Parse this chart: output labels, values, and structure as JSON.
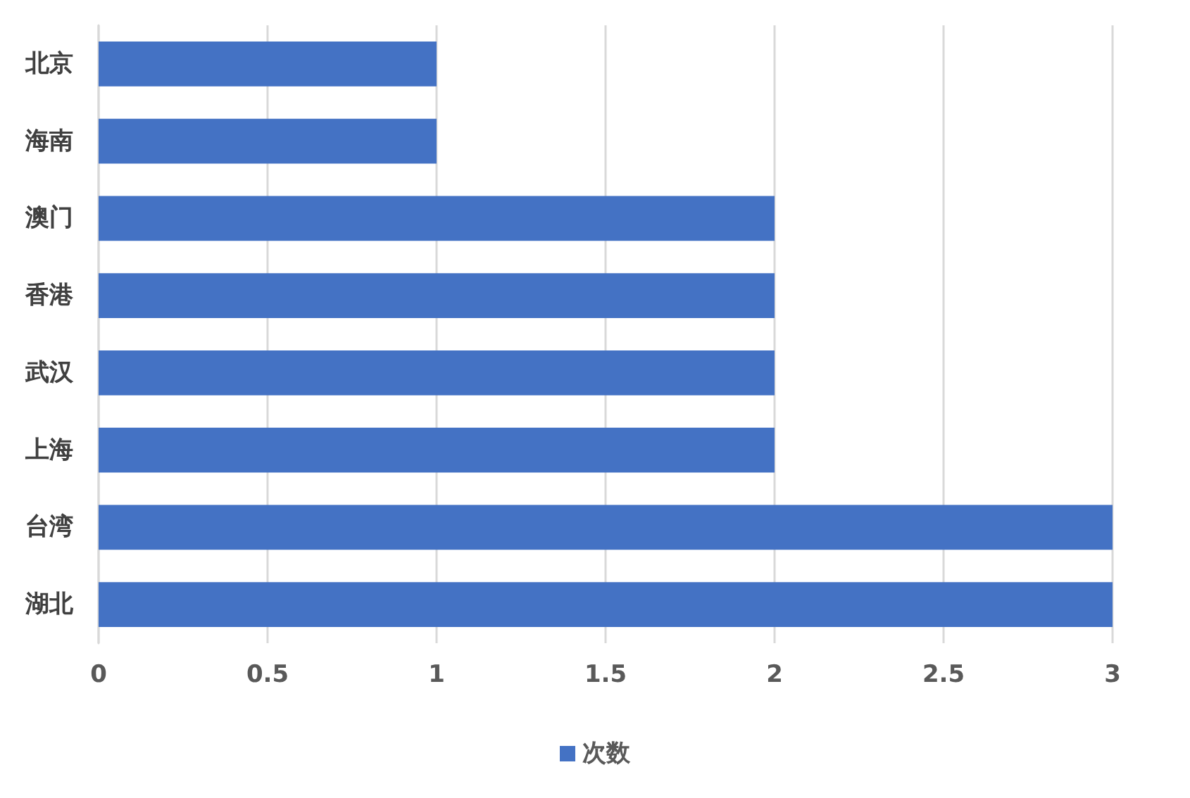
{
  "chart_data": {
    "type": "bar",
    "orientation": "horizontal",
    "categories": [
      "北京",
      "海南",
      "澳门",
      "香港",
      "武汉",
      "上海",
      "台湾",
      "湖北"
    ],
    "series": [
      {
        "name": "次数",
        "color": "#4472c4",
        "values": [
          1,
          1,
          2,
          2,
          2,
          2,
          3,
          3
        ]
      }
    ],
    "xlim": [
      0,
      3
    ],
    "xticks": [
      0,
      0.5,
      1,
      1.5,
      2,
      2.5,
      3
    ],
    "grid": "x",
    "legend": "bottom"
  }
}
